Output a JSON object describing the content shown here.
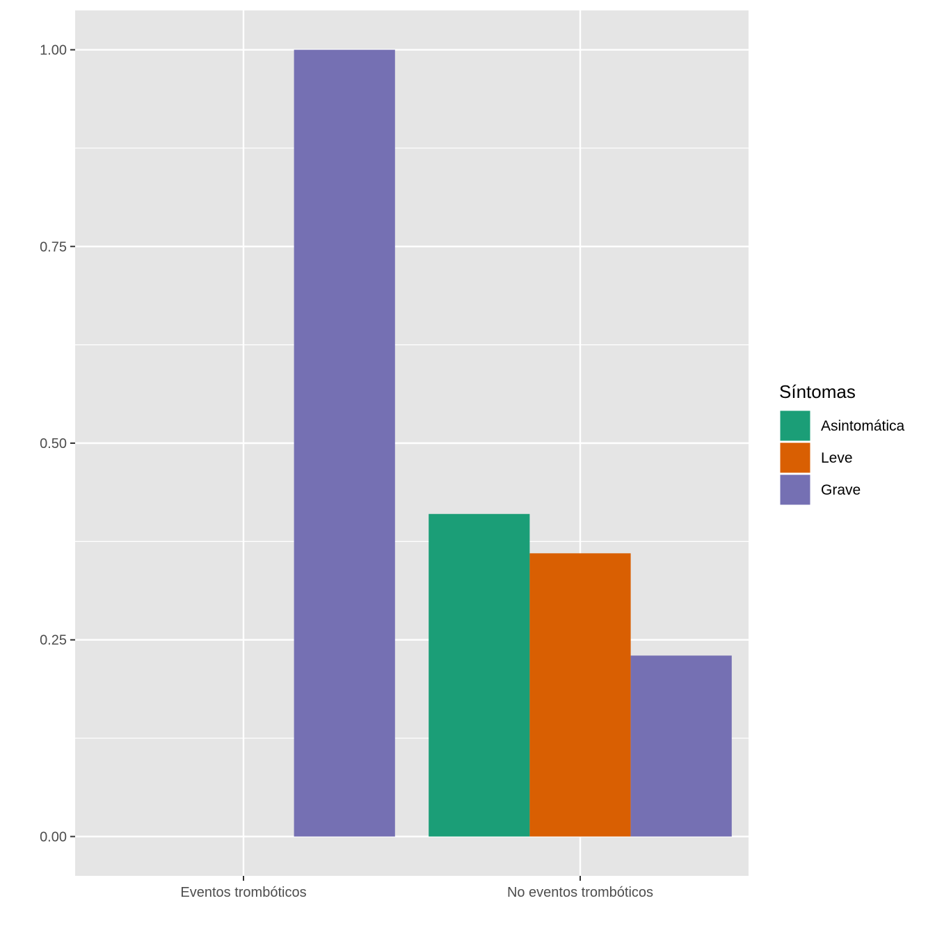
{
  "chart_data": {
    "type": "bar",
    "categories": [
      "Eventos trombóticos",
      "No eventos trombóticos"
    ],
    "series": [
      {
        "name": "Asintomática",
        "color": "#1b9e77",
        "values": [
          null,
          0.41
        ]
      },
      {
        "name": "Leve",
        "color": "#d95f02",
        "values": [
          null,
          0.36
        ]
      },
      {
        "name": "Grave",
        "color": "#7570b3",
        "values": [
          1.0,
          0.23
        ]
      }
    ],
    "yticks": [
      "0.00",
      "0.25",
      "0.50",
      "0.75",
      "1.00"
    ],
    "ylim": [
      -0.05,
      1.05
    ],
    "title": "",
    "xlabel": "",
    "ylabel": "",
    "legend": {
      "title": "Síntomas",
      "position": "right"
    },
    "grid": true,
    "panel_background": "#e5e5e5"
  }
}
